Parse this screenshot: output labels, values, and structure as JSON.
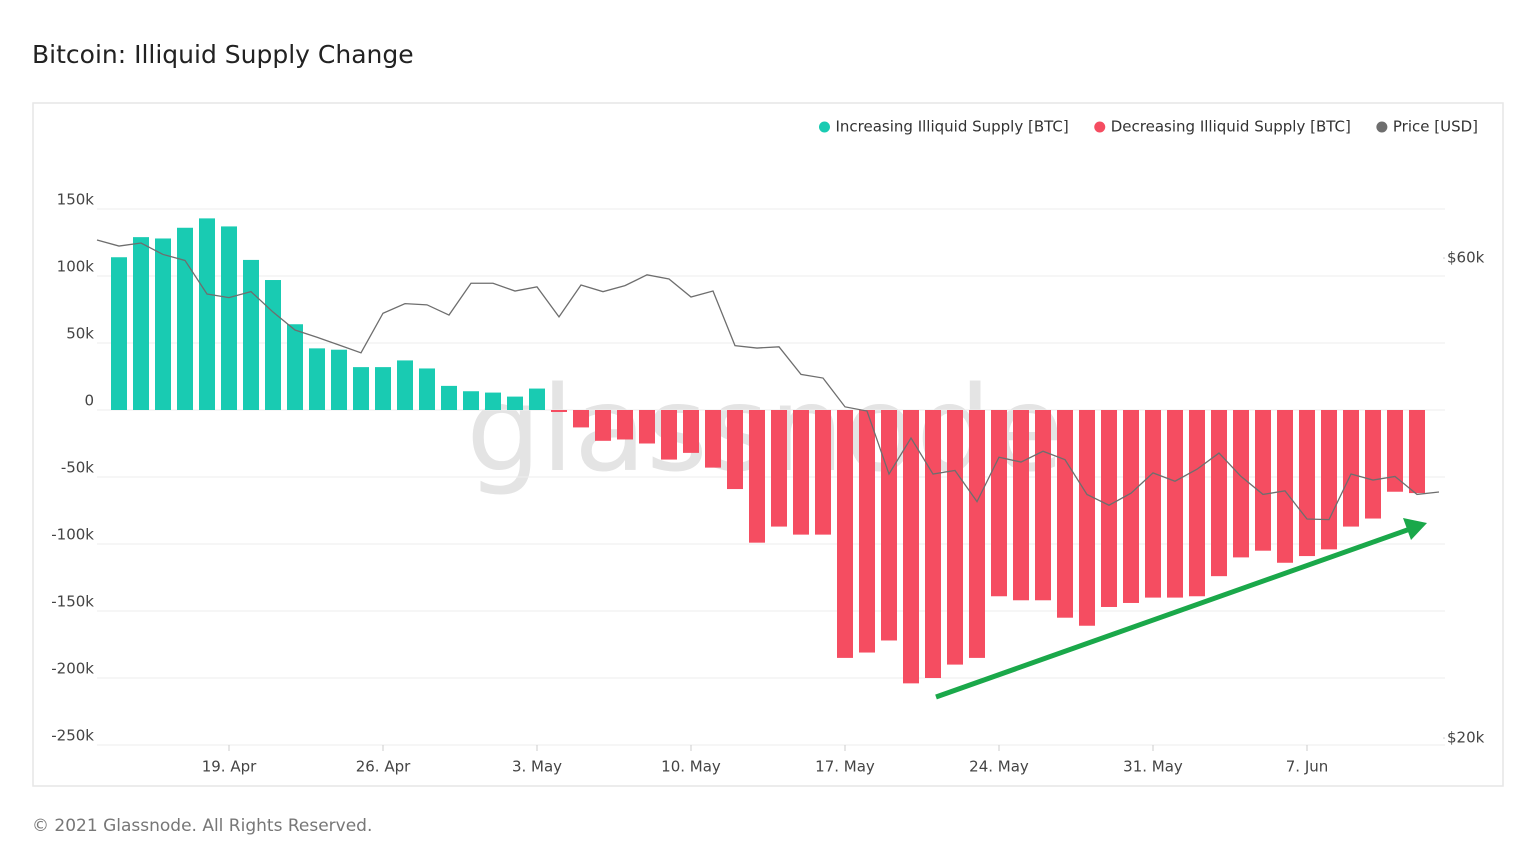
{
  "chart_data": {
    "type": "bar",
    "title": "Bitcoin: Illiquid Supply Change",
    "footer": "© 2021 Glassnode. All Rights Reserved.",
    "watermark": "glassnode",
    "x": [
      "13. Apr",
      "14. Apr",
      "15. Apr",
      "16. Apr",
      "17. Apr",
      "18. Apr",
      "19. Apr",
      "20. Apr",
      "21. Apr",
      "22. Apr",
      "23. Apr",
      "24. Apr",
      "25. Apr",
      "26. Apr",
      "27. Apr",
      "28. Apr",
      "29. Apr",
      "30. Apr",
      "1. May",
      "2. May",
      "3. May",
      "4. May",
      "5. May",
      "6. May",
      "7. May",
      "8. May",
      "9. May",
      "10. May",
      "11. May",
      "12. May",
      "13. May",
      "14. May",
      "15. May",
      "16. May",
      "17. May",
      "18. May",
      "19. May",
      "20. May",
      "21. May",
      "22. May",
      "23. May",
      "24. May",
      "25. May",
      "26. May",
      "27. May",
      "28. May",
      "29. May",
      "30. May",
      "31. May",
      "1. Jun",
      "2. Jun",
      "3. Jun",
      "4. Jun",
      "5. Jun",
      "6. Jun",
      "7. Jun",
      "8. Jun",
      "9. Jun",
      "10. Jun",
      "11. Jun",
      "12. Jun",
      "13. Jun"
    ],
    "xticks": [
      "19. Apr",
      "26. Apr",
      "3. May",
      "10. May",
      "17. May",
      "24. May",
      "31. May",
      "7. Jun"
    ],
    "series": [
      {
        "name": "Increasing Illiquid Supply [BTC]",
        "color": "#19cbb2",
        "values": [
          null,
          114000,
          129000,
          128000,
          136000,
          143000,
          137000,
          112000,
          97000,
          64000,
          46000,
          45000,
          32000,
          32000,
          37000,
          31000,
          18000,
          14000,
          13000,
          10000,
          16000,
          null,
          null,
          null,
          null,
          null,
          null,
          null,
          null,
          null,
          null,
          null,
          null,
          null,
          null,
          null,
          null,
          null,
          null,
          null,
          null,
          null,
          null,
          null,
          null,
          null,
          null,
          null,
          null,
          null,
          null,
          null,
          null,
          null,
          null,
          null,
          null,
          null,
          null,
          null,
          null,
          null
        ]
      },
      {
        "name": "Decreasing Illiquid Supply [BTC]",
        "color": "#f54d61",
        "values": [
          null,
          null,
          null,
          null,
          null,
          null,
          null,
          null,
          null,
          null,
          null,
          null,
          null,
          null,
          null,
          null,
          null,
          null,
          null,
          null,
          null,
          -1500,
          -13000,
          -23000,
          -22000,
          -25000,
          -37000,
          -32000,
          -43000,
          -59000,
          -99000,
          -87000,
          -93000,
          -93000,
          -185000,
          -181000,
          -172000,
          -204000,
          -200000,
          -190000,
          -185000,
          -139000,
          -142000,
          -142000,
          -155000,
          -161000,
          -147000,
          -144000,
          -140000,
          -140000,
          -139000,
          -124000,
          -110000,
          -105000,
          -114000,
          -109000,
          -104000,
          -87000,
          -81000,
          -61000,
          -62000,
          null
        ]
      },
      {
        "name": "Price [USD]",
        "color": "#6e6e6e",
        "type": "line",
        "axis": "y2",
        "values": [
          61500,
          61000,
          61250,
          60300,
          59800,
          57000,
          56700,
          57200,
          55500,
          54000,
          53400,
          52750,
          52100,
          55400,
          56200,
          56100,
          55250,
          57900,
          57900,
          57250,
          57600,
          55100,
          57750,
          57200,
          57700,
          58600,
          58250,
          56750,
          57250,
          52700,
          52500,
          52600,
          50300,
          50000,
          47600,
          47250,
          42000,
          45000,
          42000,
          42300,
          39700,
          43400,
          43000,
          43900,
          43200,
          40300,
          39400,
          40400,
          42100,
          41400,
          42400,
          43750,
          41800,
          40300,
          40600,
          38250,
          38200,
          42000,
          41500,
          41800,
          40300,
          40500
        ]
      }
    ],
    "ylim": [
      -250000,
      200000
    ],
    "yticks": [
      {
        "value": -250000,
        "label": "-250k"
      },
      {
        "value": -200000,
        "label": "-200k"
      },
      {
        "value": -150000,
        "label": "-150k"
      },
      {
        "value": -100000,
        "label": "-100k"
      },
      {
        "value": -50000,
        "label": "-50k"
      },
      0,
      {
        "value": 50000,
        "label": "50k"
      },
      {
        "value": 100000,
        "label": "100k"
      },
      {
        "value": 150000,
        "label": "150k"
      }
    ],
    "y2lim": [
      19420,
      69670
    ],
    "y2ticks": [
      {
        "value": 20000,
        "label": "$20k"
      },
      {
        "value": 60000,
        "label": "$60k"
      }
    ],
    "grid": true,
    "legend": "top-right"
  }
}
